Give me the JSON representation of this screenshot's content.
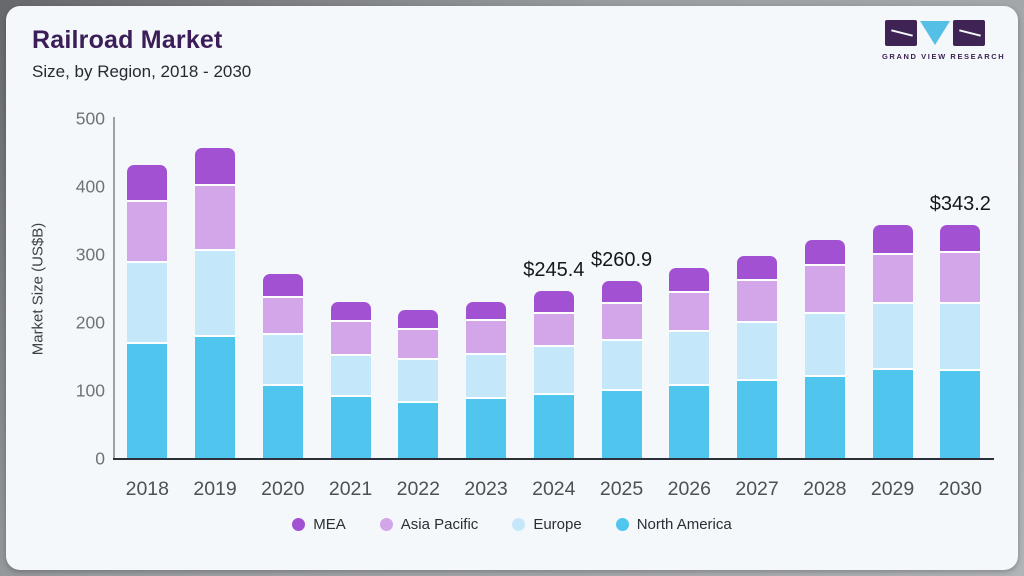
{
  "header": {
    "title": "Railroad Market",
    "subtitle": "Size, by Region, 2018 - 2030"
  },
  "logo": {
    "name": "grand-view-research",
    "text": "GRAND VIEW RESEARCH",
    "block_color": "#3f2354",
    "triangle_color": "#56bfe6"
  },
  "chart_data": {
    "type": "bar",
    "stacked": true,
    "title": "Railroad Market",
    "subtitle": "Size, by Region, 2018 - 2030",
    "xlabel": "",
    "ylabel": "Market Size (US$B)",
    "ylim": [
      0,
      500
    ],
    "yticks": [
      0,
      100,
      200,
      300,
      400,
      500
    ],
    "grid": false,
    "legend_position": "bottom",
    "categories": [
      "2018",
      "2019",
      "2020",
      "2021",
      "2022",
      "2023",
      "2024",
      "2025",
      "2026",
      "2027",
      "2028",
      "2029",
      "2030"
    ],
    "series": [
      {
        "name": "MEA",
        "color": "#a251d3",
        "values": [
          54,
          56,
          35,
          29,
          28,
          28,
          33.4,
          33.9,
          36,
          37,
          38,
          43,
          41.2
        ]
      },
      {
        "name": "Asia Pacific",
        "color": "#d2a6e9",
        "values": [
          90,
          96,
          55,
          50,
          45,
          50,
          49,
          55,
          57,
          62,
          70,
          73,
          75
        ]
      },
      {
        "name": "Europe",
        "color": "#c4e8f9",
        "values": [
          120,
          126,
          75,
          61,
          63,
          65,
          70,
          74,
          80,
          85,
          93,
          97,
          99
        ]
      },
      {
        "name": "North America",
        "color": "#50c5ee",
        "values": [
          167,
          178,
          106,
          89,
          81,
          87,
          93,
          98,
          106,
          113,
          119,
          129,
          128
        ]
      }
    ],
    "totals": [
      431,
      456,
      271,
      229,
      217,
      230,
      245.4,
      260.9,
      279,
      297,
      320,
      342,
      343.2
    ],
    "annotations": [
      {
        "category": "2024",
        "text": "$245.4"
      },
      {
        "category": "2025",
        "text": "$260.9"
      },
      {
        "category": "2030",
        "text": "$343.2"
      }
    ]
  }
}
